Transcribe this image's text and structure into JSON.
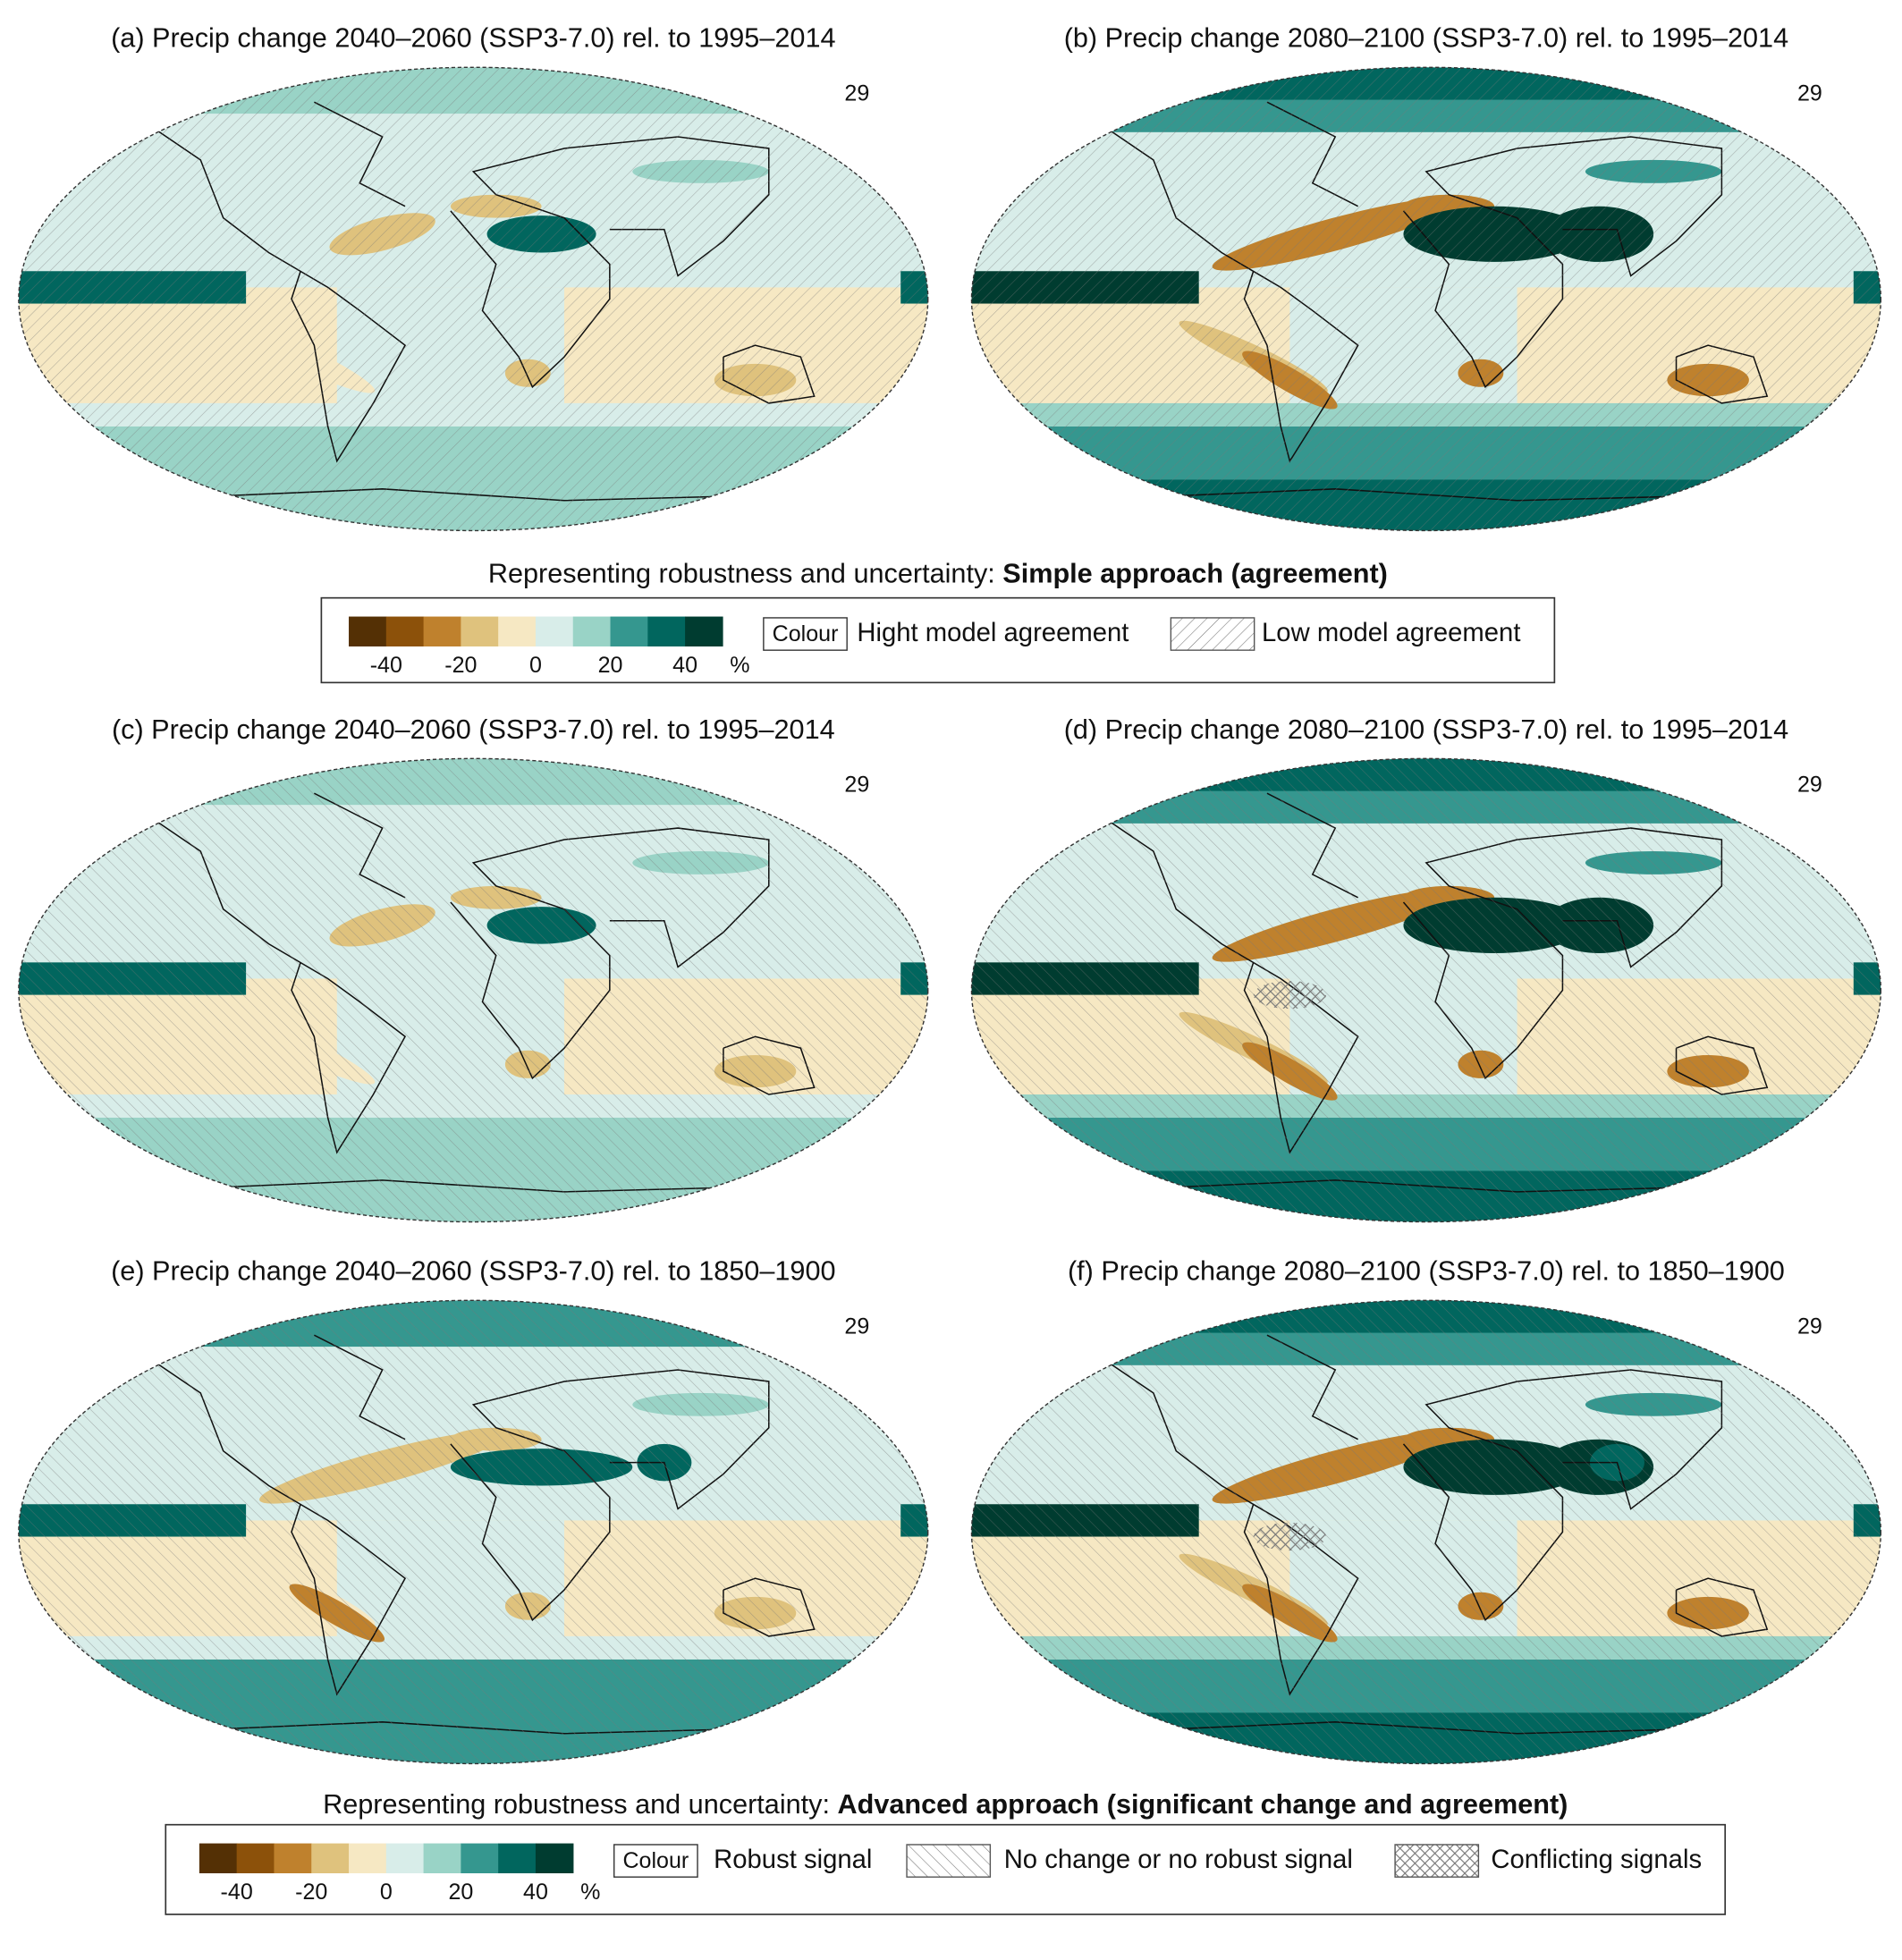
{
  "figure": {
    "panels": [
      {
        "title": "(a) Precip change 2040–2060 (SSP3-7.0) rel. to 1995–2014",
        "models": 29
      },
      {
        "title": "(b) Precip change 2080–2100 (SSP3-7.0) rel. to 1995–2014",
        "models": 29
      },
      {
        "title": "(c) Precip change 2040–2060 (SSP3-7.0) rel. to 1995–2014",
        "models": 29
      },
      {
        "title": "(d) Precip change 2080–2100 (SSP3-7.0) rel. to 1995–2014",
        "models": 29
      },
      {
        "title": "(e) Precip change 2040–2060 (SSP3-7.0) rel. to 1850–1900",
        "models": 29
      },
      {
        "title": "(f) Precip change 2080–2100 (SSP3-7.0) rel. to 1850–1900",
        "models": 29
      }
    ],
    "legends": [
      {
        "heading": "Representing robustness and uncertainty: ",
        "heading_bold": "Simple approach (agreement)",
        "colorbar": {
          "colors": [
            "#543005",
            "#8c510a",
            "#bf812d",
            "#dfc27d",
            "#f6e8c3",
            "#d8ede9",
            "#99d3c6",
            "#35978f",
            "#01665e",
            "#003c30"
          ],
          "lim": [
            -50,
            50
          ],
          "ticks": [
            -40,
            -20,
            0,
            20,
            40
          ],
          "unit": "%"
        },
        "items": [
          {
            "swatch": "Colour",
            "label": "Hight model agreement"
          },
          {
            "label": "Low model agreement"
          }
        ]
      },
      {
        "heading": "Representing robustness and uncertainty: ",
        "heading_bold": "Advanced approach (significant change and agreement)",
        "colorbar": {
          "colors": [
            "#543005",
            "#8c510a",
            "#bf812d",
            "#dfc27d",
            "#f6e8c3",
            "#d8ede9",
            "#99d3c6",
            "#35978f",
            "#01665e",
            "#003c30"
          ],
          "lim": [
            -50,
            50
          ],
          "ticks": [
            -40,
            -20,
            0,
            20,
            40
          ],
          "unit": "%"
        },
        "items": [
          {
            "swatch": "Colour",
            "label": "Robust signal"
          },
          {
            "label": "No change or no robust signal"
          },
          {
            "label": "Conflicting signals"
          }
        ]
      }
    ]
  }
}
